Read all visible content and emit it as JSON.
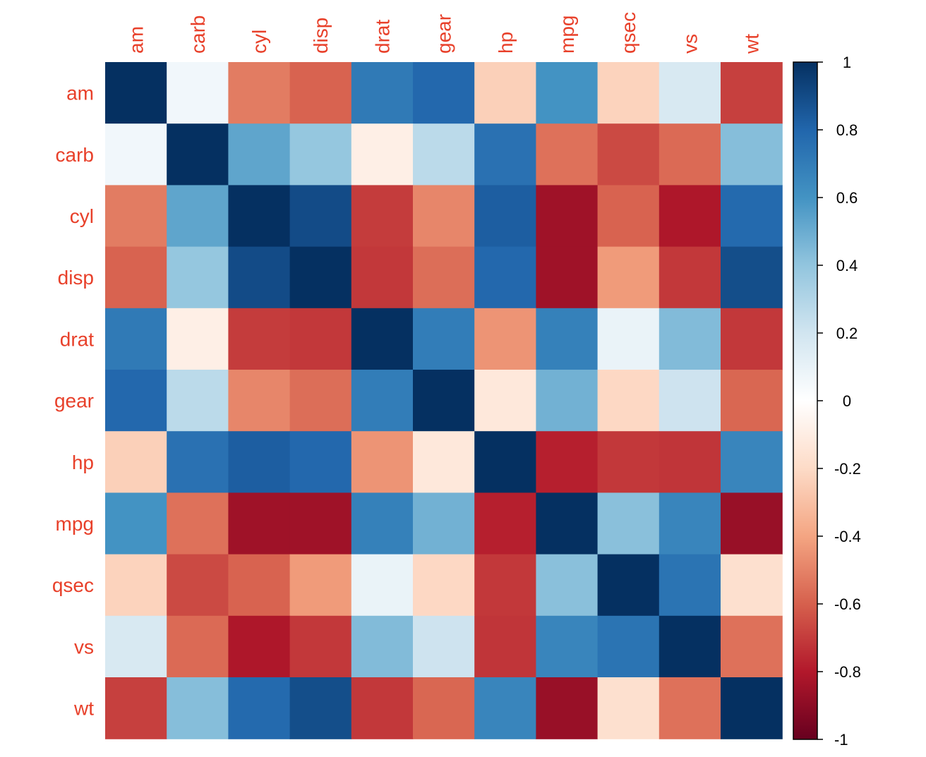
{
  "chart_data": {
    "type": "heatmap",
    "title": "",
    "variables": [
      "am",
      "carb",
      "cyl",
      "disp",
      "drat",
      "gear",
      "hp",
      "mpg",
      "qsec",
      "vs",
      "wt"
    ],
    "matrix": [
      [
        1.0,
        0.06,
        -0.52,
        -0.59,
        0.71,
        0.79,
        -0.24,
        0.6,
        -0.23,
        0.17,
        -0.69
      ],
      [
        0.06,
        1.0,
        0.53,
        0.39,
        -0.09,
        0.27,
        0.75,
        -0.55,
        -0.66,
        -0.57,
        0.43
      ],
      [
        -0.52,
        0.53,
        1.0,
        0.9,
        -0.7,
        -0.49,
        0.83,
        -0.85,
        -0.59,
        -0.81,
        0.78
      ],
      [
        -0.59,
        0.39,
        0.9,
        1.0,
        -0.71,
        -0.56,
        0.79,
        -0.85,
        -0.43,
        -0.71,
        0.89
      ],
      [
        0.71,
        -0.09,
        -0.7,
        -0.71,
        1.0,
        0.7,
        -0.45,
        0.68,
        0.09,
        0.44,
        -0.71
      ],
      [
        0.79,
        0.27,
        -0.49,
        -0.56,
        0.7,
        1.0,
        -0.13,
        0.48,
        -0.21,
        0.21,
        -0.58
      ],
      [
        -0.24,
        0.75,
        0.83,
        0.79,
        -0.45,
        -0.13,
        1.0,
        -0.78,
        -0.71,
        -0.72,
        0.66
      ],
      [
        0.6,
        -0.55,
        -0.85,
        -0.85,
        0.68,
        0.48,
        -0.78,
        1.0,
        0.42,
        0.66,
        -0.87
      ],
      [
        -0.23,
        -0.66,
        -0.59,
        -0.43,
        0.09,
        -0.21,
        -0.71,
        0.42,
        1.0,
        0.74,
        -0.17
      ],
      [
        0.17,
        -0.57,
        -0.81,
        -0.71,
        0.44,
        0.21,
        -0.72,
        0.66,
        0.74,
        1.0,
        -0.55
      ],
      [
        -0.69,
        0.43,
        0.78,
        0.89,
        -0.71,
        -0.58,
        0.66,
        -0.87,
        -0.17,
        -0.55,
        1.0
      ]
    ],
    "value_range": [
      -1,
      1
    ],
    "colorbar": {
      "ticks": [
        "1",
        "0.8",
        "0.6",
        "0.4",
        "0.2",
        "0",
        "-0.2",
        "-0.4",
        "-0.6",
        "-0.8",
        "-1"
      ],
      "tick_values": [
        1,
        0.8,
        0.6,
        0.4,
        0.2,
        0,
        -0.2,
        -0.4,
        -0.6,
        -0.8,
        -1
      ]
    },
    "palette": [
      "#67001F",
      "#B2182B",
      "#D6604D",
      "#F4A582",
      "#FDDBC7",
      "#FFFFFF",
      "#D1E5F0",
      "#92C5DE",
      "#4393C3",
      "#2166AC",
      "#053061"
    ],
    "label_color": "#E8402A",
    "grid": false,
    "legend": "right"
  }
}
